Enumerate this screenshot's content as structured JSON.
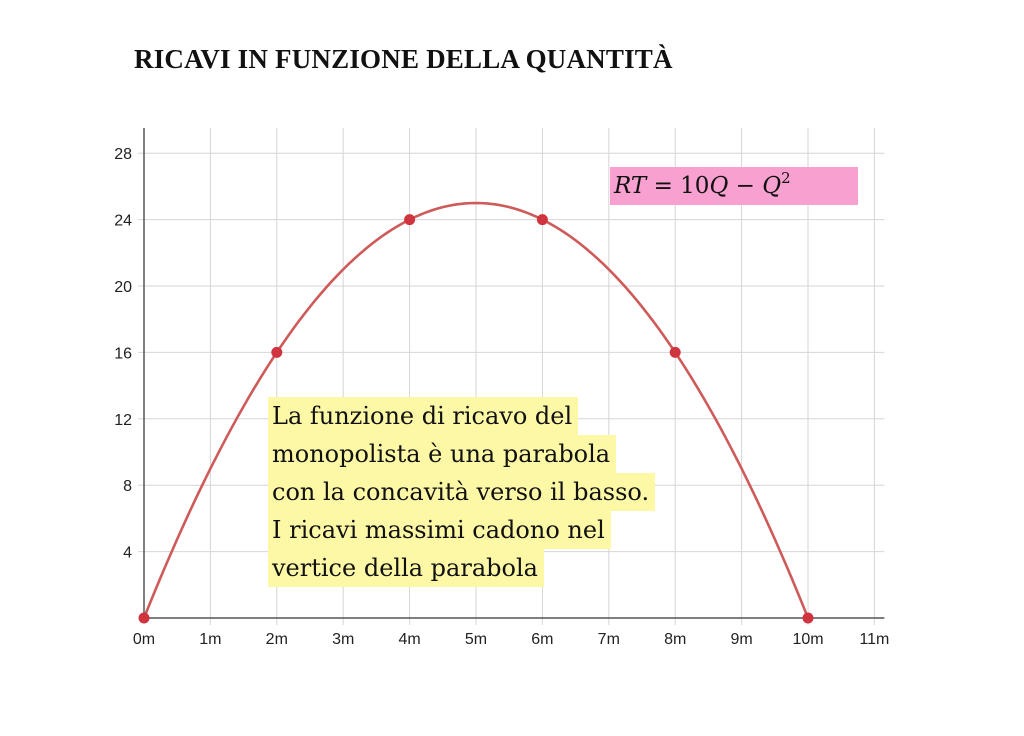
{
  "title": "RICAVI IN FUNZIONE DELLA QUANTITÀ",
  "formula": {
    "lhs": "RT",
    "eq": "=",
    "coef": "10",
    "var1": "Q",
    "minus": "−",
    "var2": "Q",
    "exp": "2"
  },
  "note_lines": [
    "La funzione di ricavo del",
    "monopolista è una parabola",
    "con la concavità verso il basso.",
    "I ricavi massimi cadono nel",
    "vertice della parabola"
  ],
  "colors": {
    "curve": "#cf5a5a",
    "point": "#d0343e",
    "grid": "#d6d6d6",
    "axis": "#555555",
    "formula_bg": "#f8a0cf",
    "note_bg": "#fcf8a6"
  },
  "chart_data": {
    "type": "line",
    "xlim": [
      0,
      11
    ],
    "ylim": [
      0,
      28
    ],
    "x_ticks": [
      0,
      1,
      2,
      3,
      4,
      5,
      6,
      7,
      8,
      9,
      10,
      11
    ],
    "x_tick_labels": [
      "0m",
      "1m",
      "2m",
      "3m",
      "4m",
      "5m",
      "6m",
      "7m",
      "8m",
      "9m",
      "10m",
      "11m"
    ],
    "y_ticks": [
      4,
      8,
      12,
      16,
      20,
      24,
      28
    ],
    "y_tick_labels": [
      "4",
      "8",
      "12",
      "16",
      "20",
      "24",
      "28"
    ],
    "grid": true,
    "curve_function": "10x - x^2",
    "curve_range": [
      0,
      10
    ],
    "points": [
      {
        "x": 0,
        "y": 0
      },
      {
        "x": 2,
        "y": 16
      },
      {
        "x": 4,
        "y": 24
      },
      {
        "x": 6,
        "y": 24
      },
      {
        "x": 8,
        "y": 16
      },
      {
        "x": 10,
        "y": 0
      }
    ]
  }
}
